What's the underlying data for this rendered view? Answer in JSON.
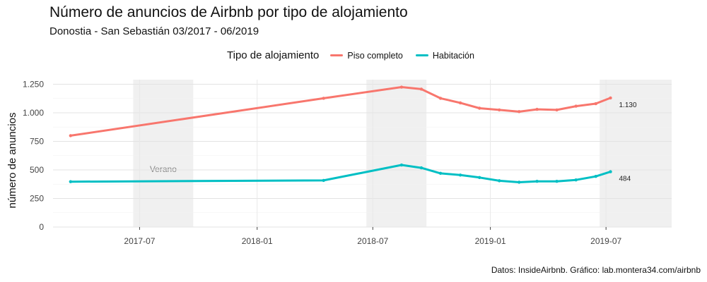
{
  "chart_data": {
    "type": "line",
    "title": "Número de anuncios de Airbnb por tipo de alojamiento",
    "subtitle": "Donostia - San Sebastián 03/2017 - 06/2019",
    "xlabel": "",
    "ylabel": "número de anuncios",
    "caption": "Datos: InsideAirbnb. Gráfico: lab.montera34.com/airbnb",
    "legend": {
      "title": "Tipo de alojamiento",
      "position": "top"
    },
    "x_range": [
      "2017-02-10",
      "2019-10-25"
    ],
    "ylim": [
      0,
      1290
    ],
    "x_ticks": [
      "2017-07-01",
      "2018-01-01",
      "2018-07-01",
      "2019-01-01",
      "2019-07-01"
    ],
    "x_tick_labels": [
      "2017-07",
      "2018-01",
      "2018-07",
      "2019-01",
      "2019-07"
    ],
    "y_ticks": [
      0,
      250,
      500,
      750,
      1000,
      1250
    ],
    "y_tick_labels": [
      "0",
      "250",
      "500",
      "750",
      "1.000",
      "1.250"
    ],
    "grid": true,
    "shaded_periods": [
      {
        "start": "2017-06-21",
        "end": "2017-09-23",
        "label": "Verano"
      },
      {
        "start": "2018-06-21",
        "end": "2018-09-23",
        "label": ""
      },
      {
        "start": "2019-06-21",
        "end": "2019-10-25",
        "label": ""
      }
    ],
    "x": [
      "2017-03-15",
      "2018-04-15",
      "2018-08-15",
      "2018-09-15",
      "2018-10-15",
      "2018-11-15",
      "2018-12-15",
      "2019-01-15",
      "2019-02-15",
      "2019-03-15",
      "2019-04-15",
      "2019-05-15",
      "2019-06-15",
      "2019-07-08"
    ],
    "series": [
      {
        "name": "Piso completo",
        "color": "#F8766D",
        "end_label": "1.130",
        "values": [
          800,
          1127,
          1225,
          1207,
          1127,
          1087,
          1040,
          1025,
          1010,
          1030,
          1025,
          1058,
          1080,
          1130
        ]
      },
      {
        "name": "Habitación",
        "color": "#00BFC4",
        "end_label": "484",
        "values": [
          397,
          408,
          543,
          518,
          470,
          455,
          433,
          405,
          392,
          400,
          400,
          412,
          443,
          484
        ]
      }
    ]
  }
}
